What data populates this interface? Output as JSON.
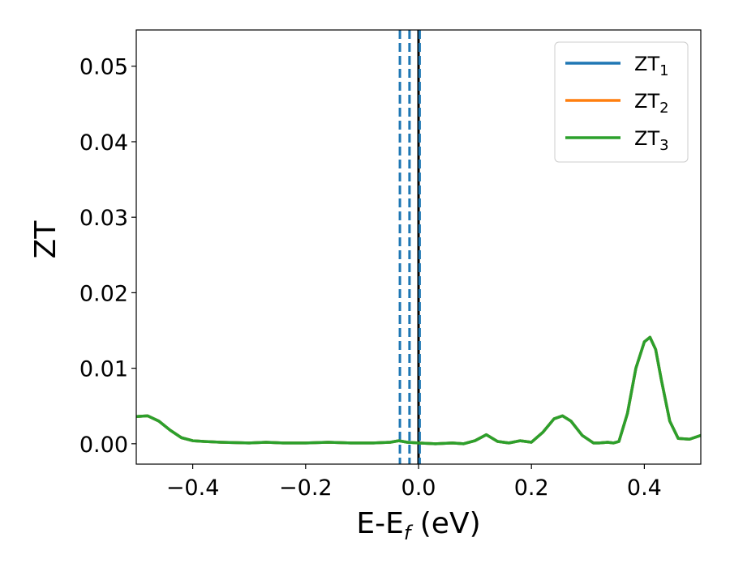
{
  "chart_data": {
    "type": "line",
    "xlabel": "E-E",
    "xlabel_sub": "f",
    "xlabel_unit": " (eV)",
    "ylabel": "ZT",
    "xlim": [
      -0.5,
      0.5
    ],
    "ylim": [
      -0.0027,
      0.0548
    ],
    "xticks": [
      -0.4,
      -0.2,
      0.0,
      0.2,
      0.4
    ],
    "xtick_labels": [
      "−0.4",
      "−0.2",
      "0.0",
      "0.2",
      "0.4"
    ],
    "yticks": [
      0.0,
      0.01,
      0.02,
      0.03,
      0.04,
      0.05
    ],
    "ytick_labels": [
      "0.00",
      "0.01",
      "0.02",
      "0.03",
      "0.04",
      "0.05"
    ],
    "grid": false,
    "legend_position": "top-right",
    "vlines": [
      {
        "x": -0.033,
        "color": "#1f77b4",
        "style": "dashed"
      },
      {
        "x": -0.016,
        "color": "#1f77b4",
        "style": "dashed"
      },
      {
        "x": 0.0,
        "color": "#000000",
        "style": "solid"
      },
      {
        "x": 0.002,
        "color": "#1f77b4",
        "style": "dashed"
      }
    ],
    "series": [
      {
        "name": "ZT",
        "name_sub": "1",
        "color": "#1f77b4",
        "x": [
          -0.5,
          -0.48,
          -0.46,
          -0.44,
          -0.42,
          -0.4,
          -0.38,
          -0.35,
          -0.3,
          -0.27,
          -0.24,
          -0.2,
          -0.16,
          -0.12,
          -0.08,
          -0.05,
          -0.035,
          -0.02,
          0.0,
          0.03,
          0.06,
          0.08,
          0.1,
          0.12,
          0.14,
          0.16,
          0.18,
          0.2,
          0.22,
          0.24,
          0.255,
          0.27,
          0.29,
          0.31,
          0.32,
          0.335,
          0.345,
          0.355,
          0.37,
          0.385,
          0.4,
          0.41,
          0.42,
          0.43,
          0.445,
          0.46,
          0.48,
          0.5
        ],
        "values": [
          0.0036,
          0.0037,
          0.003,
          0.0018,
          0.0008,
          0.0004,
          0.0003,
          0.0002,
          0.0001,
          0.0002,
          0.0001,
          0.0001,
          0.0002,
          0.0001,
          0.0001,
          0.0002,
          0.0004,
          0.0002,
          0.0001,
          0.0,
          0.0001,
          0.0,
          0.0004,
          0.0012,
          0.0003,
          0.0001,
          0.0004,
          0.0002,
          0.0015,
          0.0033,
          0.0037,
          0.003,
          0.0011,
          0.0001,
          0.0001,
          0.0002,
          0.0001,
          0.0003,
          0.004,
          0.01,
          0.0135,
          0.0141,
          0.0125,
          0.0085,
          0.003,
          0.0007,
          0.0006,
          0.0011
        ]
      },
      {
        "name": "ZT",
        "name_sub": "2",
        "color": "#ff7f0e",
        "x": [
          -0.5,
          -0.48,
          -0.46,
          -0.44,
          -0.42,
          -0.4,
          -0.38,
          -0.35,
          -0.3,
          -0.27,
          -0.24,
          -0.2,
          -0.16,
          -0.12,
          -0.08,
          -0.05,
          -0.035,
          -0.02,
          0.0,
          0.03,
          0.06,
          0.08,
          0.1,
          0.12,
          0.14,
          0.16,
          0.18,
          0.2,
          0.22,
          0.24,
          0.255,
          0.27,
          0.29,
          0.31,
          0.32,
          0.335,
          0.345,
          0.355,
          0.37,
          0.385,
          0.4,
          0.41,
          0.42,
          0.43,
          0.445,
          0.46,
          0.48,
          0.5
        ],
        "values": [
          0.0036,
          0.0037,
          0.003,
          0.0018,
          0.0008,
          0.0004,
          0.0003,
          0.0002,
          0.0001,
          0.0002,
          0.0001,
          0.0001,
          0.0002,
          0.0001,
          0.0001,
          0.0002,
          0.0004,
          0.0002,
          0.0001,
          0.0,
          0.0001,
          0.0,
          0.0004,
          0.0012,
          0.0003,
          0.0001,
          0.0004,
          0.0002,
          0.0015,
          0.0033,
          0.0037,
          0.003,
          0.0011,
          0.0001,
          0.0001,
          0.0002,
          0.0001,
          0.0003,
          0.004,
          0.01,
          0.0135,
          0.0141,
          0.0125,
          0.0085,
          0.003,
          0.0007,
          0.0006,
          0.0011
        ]
      },
      {
        "name": "ZT",
        "name_sub": "3",
        "color": "#2ca02c",
        "x": [
          -0.5,
          -0.48,
          -0.46,
          -0.44,
          -0.42,
          -0.4,
          -0.38,
          -0.35,
          -0.3,
          -0.27,
          -0.24,
          -0.2,
          -0.16,
          -0.12,
          -0.08,
          -0.05,
          -0.035,
          -0.02,
          0.0,
          0.03,
          0.06,
          0.08,
          0.1,
          0.12,
          0.14,
          0.16,
          0.18,
          0.2,
          0.22,
          0.24,
          0.255,
          0.27,
          0.29,
          0.31,
          0.32,
          0.335,
          0.345,
          0.355,
          0.37,
          0.385,
          0.4,
          0.41,
          0.42,
          0.43,
          0.445,
          0.46,
          0.48,
          0.5
        ],
        "values": [
          0.0036,
          0.0037,
          0.003,
          0.0018,
          0.0008,
          0.0004,
          0.0003,
          0.0002,
          0.0001,
          0.0002,
          0.0001,
          0.0001,
          0.0002,
          0.0001,
          0.0001,
          0.0002,
          0.0004,
          0.0002,
          0.0001,
          0.0,
          0.0001,
          0.0,
          0.0004,
          0.0012,
          0.0003,
          0.0001,
          0.0004,
          0.0002,
          0.0015,
          0.0033,
          0.0037,
          0.003,
          0.0011,
          0.0001,
          0.0001,
          0.0002,
          0.0001,
          0.0003,
          0.004,
          0.01,
          0.0135,
          0.0141,
          0.0125,
          0.0085,
          0.003,
          0.0007,
          0.0006,
          0.0011
        ]
      }
    ]
  }
}
